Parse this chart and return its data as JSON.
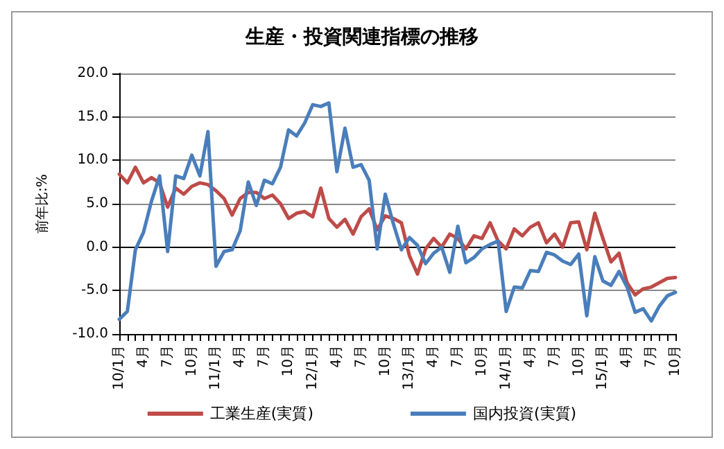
{
  "chart_data": {
    "type": "line",
    "title": "生産・投資関連指標の推移",
    "ylabel": "前年比:%",
    "categories": [
      "10/1月",
      null,
      null,
      "4月",
      null,
      null,
      "7月",
      null,
      null,
      "10月",
      null,
      null,
      "11/1月",
      null,
      null,
      "4月",
      null,
      null,
      "7月",
      null,
      null,
      "10月",
      null,
      null,
      "12/1月",
      null,
      null,
      "4月",
      null,
      null,
      "7月",
      null,
      null,
      "10月",
      null,
      null,
      "13/1月",
      null,
      null,
      "4月",
      null,
      null,
      "7月",
      null,
      null,
      "10月",
      null,
      null,
      "14/1月",
      null,
      null,
      "4月",
      null,
      null,
      "7月",
      null,
      null,
      "10月",
      null,
      null,
      "15/1月",
      null,
      null,
      "4月",
      null,
      null,
      "7月",
      null,
      null,
      "10月"
    ],
    "series": [
      {
        "name": "工業生産(実質)",
        "color": "#be4b48",
        "values": [
          8.4,
          7.4,
          9.2,
          7.4,
          8.0,
          7.4,
          4.6,
          6.8,
          6.1,
          7.0,
          7.4,
          7.2,
          6.5,
          5.6,
          3.7,
          5.6,
          6.3,
          6.3,
          5.6,
          6.0,
          5.0,
          3.3,
          3.9,
          4.1,
          3.5,
          6.8,
          3.3,
          2.3,
          3.2,
          1.5,
          3.5,
          4.4,
          2.0,
          3.6,
          3.3,
          2.8,
          -1.0,
          -3.1,
          -0.2,
          1.0,
          0,
          1.5,
          1.0,
          -0.2,
          1.3,
          1.0,
          2.8,
          0.7,
          -0.2,
          2.1,
          1.3,
          2.3,
          2.8,
          0.5,
          1.5,
          0,
          2.8,
          2.9,
          -0.3,
          3.9,
          1.0,
          -1.7,
          -0.7,
          -4.1,
          -5.5,
          -4.8,
          -4.6,
          -4.1,
          -3.6,
          -3.5
        ]
      },
      {
        "name": "国内投資(実質)",
        "color": "#4a7ebb",
        "values": [
          -8.3,
          -7.4,
          -0.3,
          1.7,
          5.3,
          8.2,
          -0.5,
          8.2,
          7.9,
          10.6,
          8.2,
          13.3,
          -2.2,
          -0.5,
          -0.3,
          1.9,
          7.5,
          4.8,
          7.7,
          7.3,
          9.2,
          13.5,
          12.8,
          14.3,
          16.4,
          16.2,
          16.6,
          8.7,
          13.7,
          9.2,
          9.5,
          7.7,
          -0.2,
          6.1,
          2.7,
          -0.3,
          1.1,
          0.2,
          -1.9,
          -0.7,
          0,
          -2.9,
          2.4,
          -1.8,
          -1.2,
          -0.2,
          0.3,
          0.7,
          -7.4,
          -4.6,
          -4.7,
          -2.7,
          -2.8,
          -0.6,
          -0.9,
          -1.6,
          -2.0,
          -0.8,
          -7.9,
          -1.1,
          -3.9,
          -4.4,
          -2.8,
          -4.6,
          -7.5,
          -7.1,
          -8.5,
          -6.8,
          -5.6,
          -5.2
        ]
      }
    ],
    "ylim": [
      -10,
      20
    ],
    "yticks": [
      {
        "value": -10,
        "label": "-10.0"
      },
      {
        "value": -5,
        "label": "-5.0"
      },
      {
        "value": 0,
        "label": "0.0"
      },
      {
        "value": 5,
        "label": "5.0"
      },
      {
        "value": 10,
        "label": "10.0"
      },
      {
        "value": 15,
        "label": "15.0"
      },
      {
        "value": 20,
        "label": "20.0"
      }
    ],
    "grid": "y",
    "legend": "bottom",
    "marker": "none",
    "line_style": "solid"
  }
}
